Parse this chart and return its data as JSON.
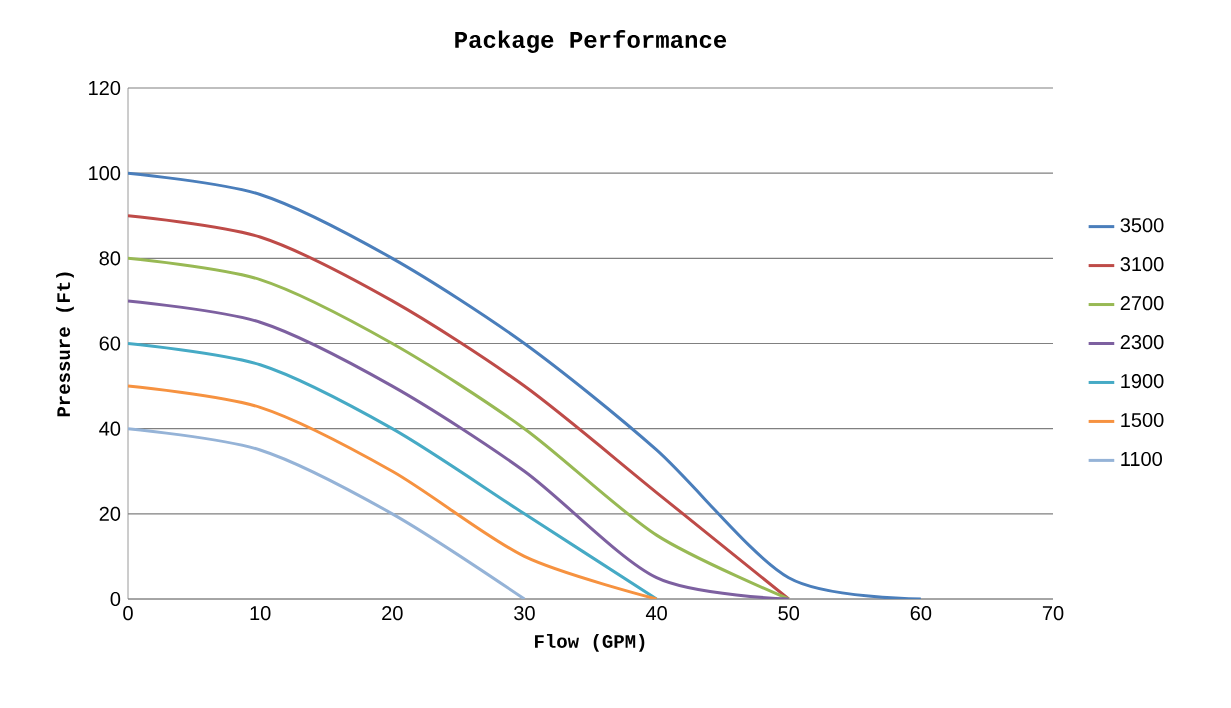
{
  "chart_data": {
    "type": "line",
    "title": "Package Performance",
    "xlabel": "Flow (GPM)",
    "ylabel": "Pressure (Ft)",
    "xlim": [
      0,
      70
    ],
    "xticks": [
      0,
      10,
      20,
      30,
      40,
      50,
      60,
      70
    ],
    "ylim": [
      0,
      120
    ],
    "yticks": [
      0,
      20,
      40,
      60,
      80,
      100,
      120
    ],
    "grid": "y",
    "legend": "right",
    "marker": "none",
    "line_style": "solid",
    "series": [
      {
        "name": "3500",
        "color": "#4a7ebb",
        "x": [
          0,
          10,
          20,
          30,
          40,
          50,
          60
        ],
        "values": [
          100,
          95,
          80,
          60,
          35,
          5,
          0
        ]
      },
      {
        "name": "3100",
        "color": "#be4b48",
        "x": [
          0,
          10,
          20,
          30,
          40,
          50
        ],
        "values": [
          90,
          85,
          70,
          50,
          25,
          0
        ]
      },
      {
        "name": "2700",
        "color": "#98b954",
        "x": [
          0,
          10,
          20,
          30,
          40,
          50
        ],
        "values": [
          80,
          75,
          60,
          40,
          15,
          0
        ]
      },
      {
        "name": "2300",
        "color": "#7d60a0",
        "x": [
          0,
          10,
          20,
          30,
          40,
          50
        ],
        "values": [
          70,
          65,
          50,
          30,
          5,
          0
        ]
      },
      {
        "name": "1900",
        "color": "#46aac5",
        "x": [
          0,
          10,
          20,
          30,
          40
        ],
        "values": [
          60,
          55,
          40,
          20,
          0
        ]
      },
      {
        "name": "1500",
        "color": "#f69240",
        "x": [
          0,
          10,
          20,
          30,
          40
        ],
        "values": [
          50,
          45,
          30,
          10,
          0
        ]
      },
      {
        "name": "1100",
        "color": "#95b3d7",
        "x": [
          0,
          10,
          20,
          30
        ],
        "values": [
          40,
          35,
          20,
          0
        ]
      }
    ]
  }
}
